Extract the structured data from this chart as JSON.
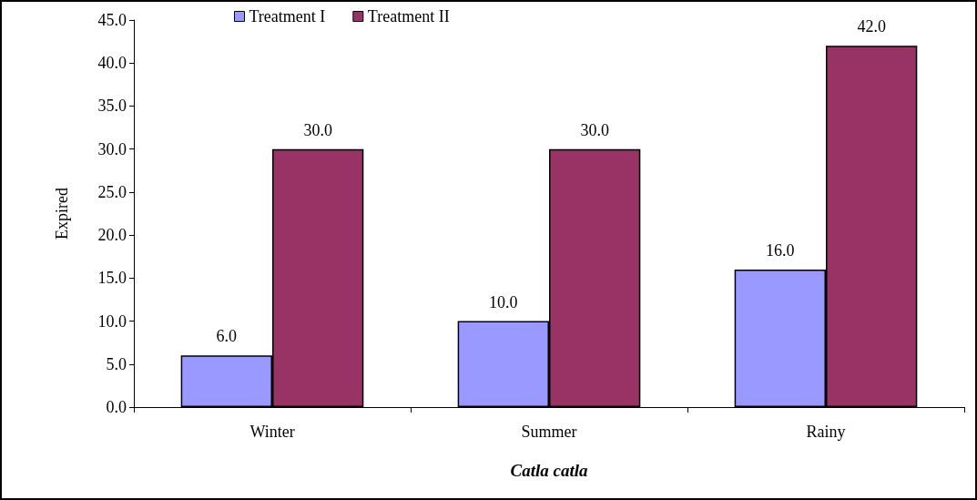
{
  "chart_data": {
    "type": "bar",
    "xlabel": "Catla catla",
    "ylabel": "Expired",
    "categories": [
      "Winter",
      "Summer",
      "Rainy"
    ],
    "series": [
      {
        "name": "Treatment I",
        "color": "#9999ff",
        "values": [
          6,
          10,
          16
        ],
        "value_labels": [
          "6.0",
          "10.0",
          "16.0"
        ]
      },
      {
        "name": "Treatment II",
        "color": "#993366",
        "values": [
          30,
          30,
          42
        ],
        "value_labels": [
          "30.0",
          "30.0",
          "42.0"
        ]
      }
    ],
    "ylim": [
      0,
      45
    ],
    "yticks": [
      {
        "value": 0,
        "label": "0.0"
      },
      {
        "value": 5,
        "label": "5.0"
      },
      {
        "value": 10,
        "label": "10.0"
      },
      {
        "value": 15,
        "label": "15.0"
      },
      {
        "value": 20,
        "label": "20.0"
      },
      {
        "value": 25,
        "label": "25.0"
      },
      {
        "value": 30,
        "label": "30.0"
      },
      {
        "value": 35,
        "label": "35.0"
      },
      {
        "value": 40,
        "label": "40.0"
      },
      {
        "value": 45,
        "label": "45.0"
      }
    ],
    "grid": false,
    "legend": "top"
  }
}
